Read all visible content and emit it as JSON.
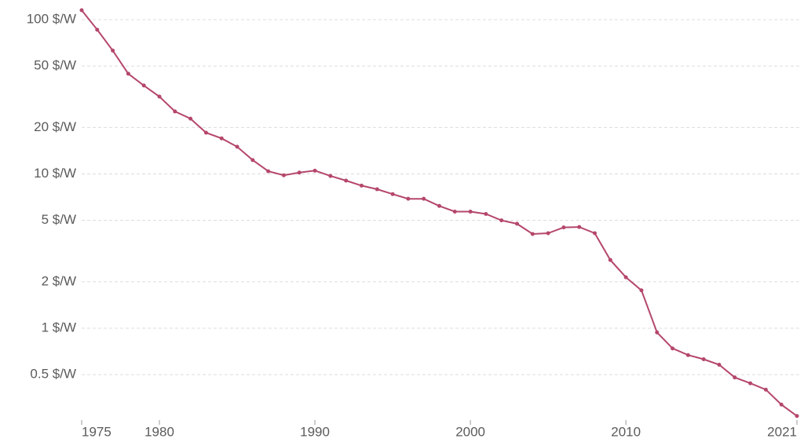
{
  "chart_data": {
    "type": "line",
    "ylog": true,
    "grid": true,
    "x": [
      1975,
      1976,
      1977,
      1978,
      1979,
      1980,
      1981,
      1982,
      1983,
      1984,
      1985,
      1986,
      1987,
      1988,
      1989,
      1990,
      1991,
      1992,
      1993,
      1994,
      1995,
      1996,
      1997,
      1998,
      1999,
      2000,
      2001,
      2002,
      2003,
      2004,
      2005,
      2006,
      2007,
      2008,
      2009,
      2010,
      2011,
      2012,
      2013,
      2014,
      2015,
      2016,
      2017,
      2018,
      2019,
      2020,
      2021
    ],
    "series": [
      {
        "color": "#b5476a",
        "values": [
          115,
          86,
          63,
          44.6,
          37.4,
          31.7,
          25.4,
          22.8,
          18.5,
          17,
          15,
          12.3,
          10.4,
          9.8,
          10.2,
          10.5,
          9.7,
          9.05,
          8.4,
          7.96,
          7.4,
          6.9,
          6.9,
          6.2,
          5.7,
          5.7,
          5.5,
          5.0,
          4.75,
          4.08,
          4.13,
          4.5,
          4.53,
          4.13,
          2.77,
          2.14,
          1.76,
          0.94,
          0.74,
          0.67,
          0.63,
          0.58,
          0.48,
          0.44,
          0.4,
          0.32,
          0.27
        ]
      }
    ],
    "xlim": [
      1975,
      2021
    ],
    "xticks": [
      1975,
      1980,
      1990,
      2000,
      2010,
      2021
    ],
    "ylim": [
      0.26,
      120
    ],
    "yticks": [
      {
        "value": 0.5,
        "label": "0.5 $/W"
      },
      {
        "value": 1,
        "label": "1 $/W"
      },
      {
        "value": 2,
        "label": "2 $/W"
      },
      {
        "value": 5,
        "label": "5 $/W"
      },
      {
        "value": 10,
        "label": "10 $/W"
      },
      {
        "value": 20,
        "label": "20 $/W"
      },
      {
        "value": 50,
        "label": "50 $/W"
      },
      {
        "value": 100,
        "label": "100 $/W"
      }
    ]
  }
}
